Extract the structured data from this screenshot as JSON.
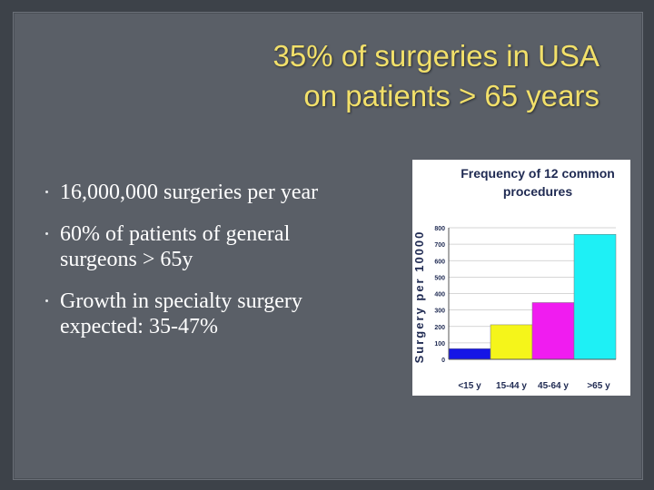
{
  "title": {
    "line1": "35% of surgeries in USA",
    "line2": "on patients > 65 years"
  },
  "bullets": [
    {
      "line1": "16,000,000 surgeries per year",
      "line2": ""
    },
    {
      "line1": "60% of patients  of general",
      "line2": "surgeons > 65y"
    },
    {
      "line1": "Growth in specialty surgery",
      "line2": "expected: 35-47%"
    }
  ],
  "chart_data": {
    "type": "bar",
    "title_line1": "Frequency of 12 common",
    "title_line2": "procedures",
    "ylabel": "Surgery per 10000",
    "categories": [
      "<15 y",
      "15-44 y",
      "45-64 y",
      ">65 y"
    ],
    "values": [
      65,
      210,
      345,
      760
    ],
    "colors": [
      "#1515e6",
      "#f5f51a",
      "#f01cf0",
      "#1ef0f5"
    ],
    "ylim": [
      0,
      800
    ],
    "yticks": [
      0,
      100,
      200,
      300,
      400,
      500,
      600,
      700,
      800
    ],
    "grid": true
  }
}
